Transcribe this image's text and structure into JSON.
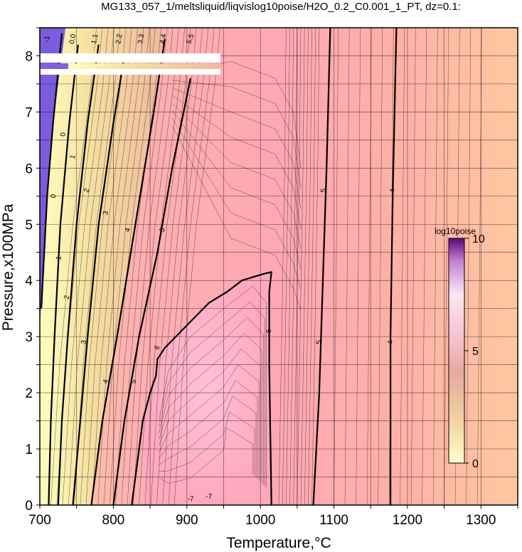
{
  "chart_data": {
    "type": "heatmap",
    "title": "MG133_057_1/meltsliquid/liqvislog10poise/H2O_0.2_C0.001_1_PT, dz=0.1:",
    "xlabel": "Temperature,°C",
    "ylabel": "Pressure,x100MPa",
    "xlim": [
      700,
      1350
    ],
    "ylim": [
      0,
      8.5
    ],
    "x_ticks": [
      700,
      800,
      900,
      1000,
      1100,
      1200,
      1300
    ],
    "y_ticks": [
      0,
      1,
      2,
      3,
      4,
      5,
      6,
      7,
      8
    ],
    "grid": true,
    "colorbar": {
      "title": "log10poise",
      "range": [
        0,
        10
      ],
      "tick_labels": [
        "0",
        "5",
        "10"
      ],
      "colors": [
        "#ffffcc",
        "#f5d9a0",
        "#e8a5a0",
        "#f4b8c8",
        "#fce8f0",
        "#b070c0",
        "#6a1080"
      ]
    },
    "region_colors": {
      "low_T_region": "#7b5cdc",
      "hot_region": "#ffc0a0",
      "mid_region": "#ffa8b0",
      "core_region": "#ffb8d0"
    },
    "contours": [
      {
        "level": 6,
        "label": "6",
        "bold": true,
        "points": [
          [
            1015,
            0
          ],
          [
            1012,
            2.5
          ],
          [
            1012,
            3.8
          ],
          [
            1015,
            4.15
          ],
          [
            1005,
            4.12
          ],
          [
            975,
            4.0
          ],
          [
            955,
            3.8
          ],
          [
            930,
            3.6
          ],
          [
            900,
            3.2
          ],
          [
            870,
            2.8
          ],
          [
            860,
            2.6
          ],
          [
            858,
            2.3
          ],
          [
            850,
            2.0
          ],
          [
            840,
            1.5
          ],
          [
            835,
            1.0
          ],
          [
            830,
            0.5
          ],
          [
            825,
            0
          ]
        ]
      },
      {
        "level": 5,
        "label": "5",
        "bold": true,
        "points": [
          [
            1072,
            0
          ],
          [
            1080,
            2.0
          ],
          [
            1085,
            4.0
          ],
          [
            1090,
            6.0
          ],
          [
            1095,
            8.5
          ]
        ]
      },
      {
        "level": 5,
        "label": "5",
        "bold": true,
        "points": [
          [
            800,
            0
          ],
          [
            815,
            1.5
          ],
          [
            835,
            3.0
          ],
          [
            860,
            4.5
          ],
          [
            880,
            6.0
          ],
          [
            905,
            7.6
          ]
        ]
      },
      {
        "level": 4,
        "label": "4",
        "bold": true,
        "points": [
          [
            1177,
            0
          ],
          [
            1177,
            3.0
          ],
          [
            1180,
            5.5
          ],
          [
            1185,
            8.5
          ]
        ]
      },
      {
        "level": 4,
        "label": "4",
        "bold": true,
        "points": [
          [
            770,
            0
          ],
          [
            785,
            1.5
          ],
          [
            805,
            3.0
          ],
          [
            830,
            5.0
          ],
          [
            855,
            7.0
          ],
          [
            870,
            8.3
          ]
        ]
      },
      {
        "level": 3,
        "label": "3",
        "bold": true,
        "points": [
          [
            745,
            0
          ],
          [
            755,
            1.5
          ],
          [
            765,
            3.0
          ],
          [
            780,
            5.0
          ],
          [
            800,
            6.8
          ],
          [
            815,
            8.0
          ]
        ]
      },
      {
        "level": 2,
        "label": "2",
        "bold": true,
        "points": [
          [
            725,
            0
          ],
          [
            730,
            1.5
          ],
          [
            738,
            3.0
          ],
          [
            750,
            5.0
          ],
          [
            765,
            6.8
          ],
          [
            780,
            8.2
          ]
        ]
      },
      {
        "level": 1,
        "label": "1",
        "bold": true,
        "points": [
          [
            712,
            0
          ],
          [
            715,
            1.5
          ],
          [
            720,
            3.0
          ],
          [
            728,
            5.0
          ],
          [
            740,
            6.8
          ],
          [
            752,
            8.2
          ]
        ]
      },
      {
        "level": 0,
        "label": "0",
        "bold": true,
        "points": [
          [
            702,
            3.5
          ],
          [
            710,
            5.5
          ],
          [
            718,
            6.8
          ],
          [
            730,
            8.4
          ]
        ]
      }
    ],
    "annotations": [
      {
        "text": "-1",
        "x": 710,
        "y": 8.3,
        "rotate": -80
      },
      {
        "text": "0.0",
        "x": 745,
        "y": 8.3,
        "rotate": -80
      },
      {
        "text": "1.1",
        "x": 775,
        "y": 8.3,
        "rotate": -80
      },
      {
        "text": "2.2",
        "x": 808,
        "y": 8.3,
        "rotate": -80
      },
      {
        "text": "3.3",
        "x": 838,
        "y": 8.3,
        "rotate": -80
      },
      {
        "text": "4.4",
        "x": 868,
        "y": 8.3,
        "rotate": -80
      },
      {
        "text": "5.5",
        "x": 905,
        "y": 8.3,
        "rotate": -70
      },
      {
        "text": "6",
        "x": 1012,
        "y": 3.1,
        "rotate": -90
      },
      {
        "text": "6",
        "x": 860,
        "y": 2.8,
        "rotate": -60
      },
      {
        "text": "5",
        "x": 1080,
        "y": 2.9,
        "rotate": -85
      },
      {
        "text": "5",
        "x": 1086,
        "y": 5.6,
        "rotate": -85
      },
      {
        "text": "5",
        "x": 828,
        "y": 2.2,
        "rotate": -70
      },
      {
        "text": "5",
        "x": 867,
        "y": 4.9,
        "rotate": -70
      },
      {
        "text": "4",
        "x": 1177,
        "y": 2.9,
        "rotate": -90
      },
      {
        "text": "4",
        "x": 1180,
        "y": 5.6,
        "rotate": -85
      },
      {
        "text": "4",
        "x": 790,
        "y": 2.2,
        "rotate": -75
      },
      {
        "text": "4",
        "x": 820,
        "y": 4.9,
        "rotate": -75
      },
      {
        "text": "3",
        "x": 760,
        "y": 2.9,
        "rotate": -80
      },
      {
        "text": "3",
        "x": 790,
        "y": 5.2,
        "rotate": -75
      },
      {
        "text": "2",
        "x": 737,
        "y": 3.7,
        "rotate": -80
      },
      {
        "text": "2",
        "x": 764,
        "y": 5.6,
        "rotate": -75
      },
      {
        "text": "1",
        "x": 726,
        "y": 4.4,
        "rotate": -80
      },
      {
        "text": "1",
        "x": 745,
        "y": 6.2,
        "rotate": -75
      },
      {
        "text": "0",
        "x": 719,
        "y": 5.5,
        "rotate": -80
      },
      {
        "text": "0",
        "x": 732,
        "y": 6.6,
        "rotate": -80
      },
      {
        "text": "-7",
        "x": 930,
        "y": 0.15,
        "rotate": 0
      },
      {
        "text": "-7",
        "x": 905,
        "y": 0.1,
        "rotate": 0
      }
    ]
  }
}
